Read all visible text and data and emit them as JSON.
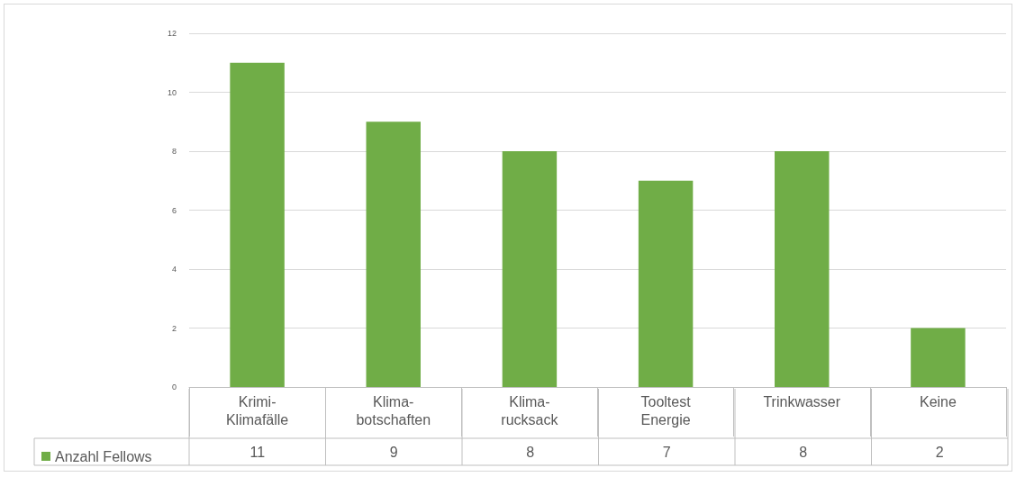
{
  "chart_data": {
    "type": "bar",
    "categories": [
      "Krimi-Klimafälle",
      "Klima-botschaften",
      "Klima-rucksack",
      "Tooltest Energie",
      "Trinkwasser",
      "Keine"
    ],
    "series": [
      {
        "name": "Anzahl Fellows",
        "color": "#70ad47",
        "values": [
          11,
          9,
          8,
          7,
          8,
          2
        ]
      }
    ],
    "ylim": [
      0,
      12
    ],
    "yticks": [
      0,
      2,
      4,
      6,
      8,
      10,
      12
    ],
    "grid": "y",
    "legend": "bottom",
    "data_labels": true
  }
}
